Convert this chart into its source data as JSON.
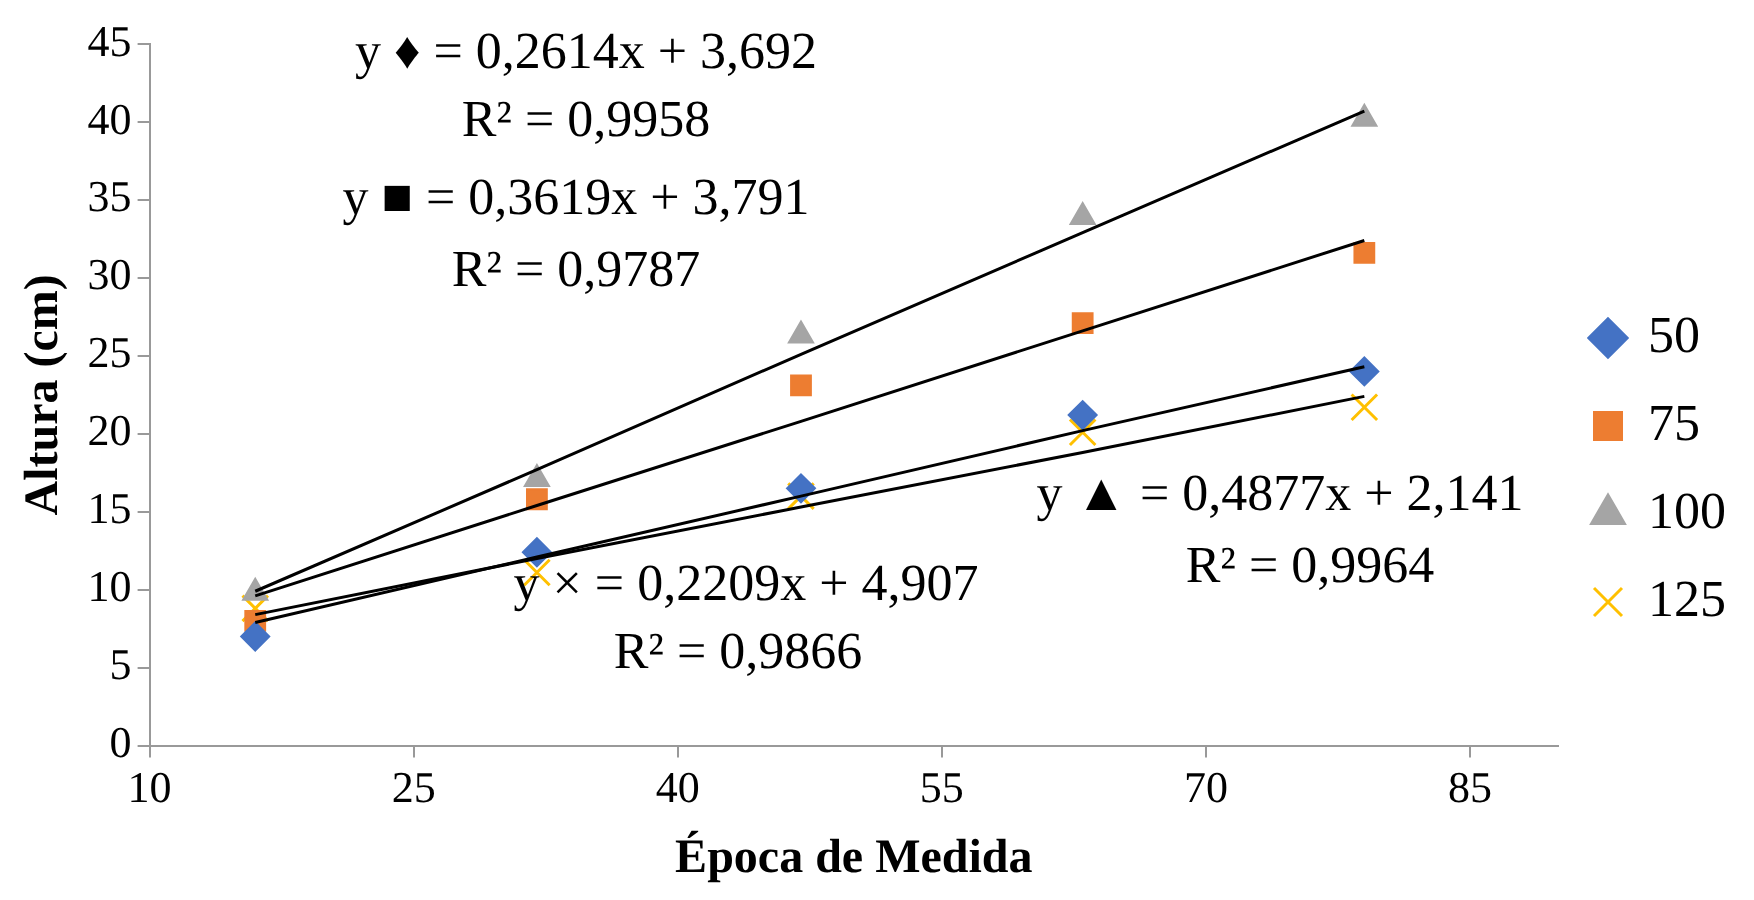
{
  "chart_data": {
    "type": "scatter",
    "xlabel": "Época de Medida",
    "ylabel": "Altura (cm)",
    "x": [
      16,
      32,
      47,
      63,
      79
    ],
    "xlim": [
      10,
      90
    ],
    "xticks": [
      10,
      25,
      40,
      55,
      70,
      85
    ],
    "ylim": [
      0,
      45
    ],
    "yticks": [
      0,
      5,
      10,
      15,
      20,
      25,
      30,
      35,
      40,
      45
    ],
    "grid": false,
    "legend": "right",
    "series": [
      {
        "name": "50",
        "color": "#4472c4",
        "marker": "diamond",
        "values": [
          7.0,
          12.4,
          16.5,
          21.2,
          24.0
        ]
      },
      {
        "name": "75",
        "color": "#ed7d31",
        "marker": "square",
        "values": [
          8.0,
          15.8,
          23.1,
          27.1,
          31.6
        ]
      },
      {
        "name": "100",
        "color": "#a5a5a5",
        "marker": "triangle",
        "values": [
          9.8,
          17.1,
          26.3,
          33.9,
          40.2
        ]
      },
      {
        "name": "125",
        "color": "#ffc000",
        "marker": "cross",
        "values": [
          8.8,
          11.1,
          16.0,
          20.1,
          21.7
        ]
      },
      {
        "type": "line",
        "color": "#000000",
        "marker": "none",
        "values": [
          7.9,
          12.1,
          16.0,
          20.2,
          24.3
        ]
      },
      {
        "type": "line",
        "color": "#000000",
        "marker": "none",
        "values": [
          9.6,
          15.4,
          20.8,
          26.6,
          32.4
        ]
      },
      {
        "type": "line",
        "color": "#000000",
        "marker": "none",
        "values": [
          9.9,
          17.7,
          25.1,
          32.9,
          40.7
        ]
      },
      {
        "type": "line",
        "color": "#000000",
        "marker": "none",
        "values": [
          8.4,
          12.0,
          15.3,
          18.8,
          22.4
        ]
      }
    ],
    "annotations": [
      "y ♦ = 0,2614x + 3,692",
      "R² = 0,9958",
      "y ■ = 0,3619x + 3,791",
      "R² = 0,9787",
      "y ▲ = 0,4877x + 2,141",
      "R² = 0,9964",
      "y × = 0,2209x + 4,907",
      "R² = 0,9866"
    ]
  }
}
